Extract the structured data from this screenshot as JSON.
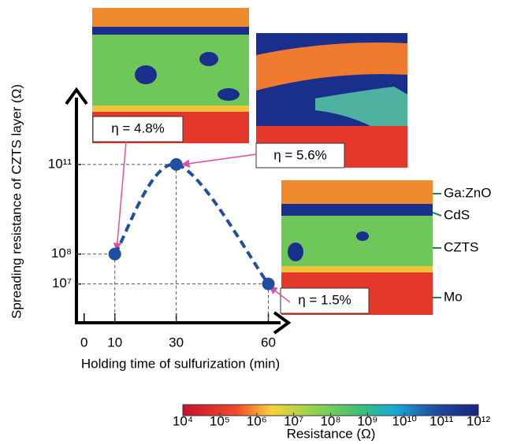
{
  "chart_data": {
    "type": "line",
    "x_label": "Holding time of sulfurization  (min)",
    "y_label": "Spreading resistance of CZTS layer  (Ω)",
    "x": [
      10,
      30,
      60
    ],
    "series": [
      {
        "color": "#1f4ea3",
        "values": [
          100000000,
          100000000000,
          10000000
        ]
      }
    ],
    "log_y": true,
    "xlim": [
      -2.5,
      65
    ],
    "ylim": [
      500000,
      10000000000000
    ],
    "xticks": [
      0,
      10,
      30,
      60
    ],
    "yticks": [
      {
        "value": 10000000,
        "label": "10⁷"
      },
      {
        "value": 100000000,
        "label": "10⁸"
      },
      {
        "value": 100000000000,
        "label": "10¹¹"
      }
    ],
    "annotations": [
      "η = 4.8%",
      "η = 5.6%",
      "η = 1.5%"
    ],
    "layer_labels": [
      "Ga:ZnO",
      "CdS",
      "CZTS",
      "Mo"
    ],
    "colorbar": {
      "label": "Resistance  (Ω)",
      "lim": [
        10000,
        1000000000000
      ],
      "ticks": [
        {
          "value": 10000,
          "label": "10⁴"
        },
        {
          "value": 100000,
          "label": "10⁵"
        },
        {
          "value": 1000000,
          "label": "10⁶"
        },
        {
          "value": 10000000,
          "label": "10⁷"
        },
        {
          "value": 100000000,
          "label": "10⁸"
        },
        {
          "value": 1000000000,
          "label": "10⁹"
        },
        {
          "value": 10000000000,
          "label": "10¹⁰"
        },
        {
          "value": 100000000000,
          "label": "10¹¹"
        },
        {
          "value": 1000000000000,
          "label": "10¹²"
        }
      ]
    }
  }
}
